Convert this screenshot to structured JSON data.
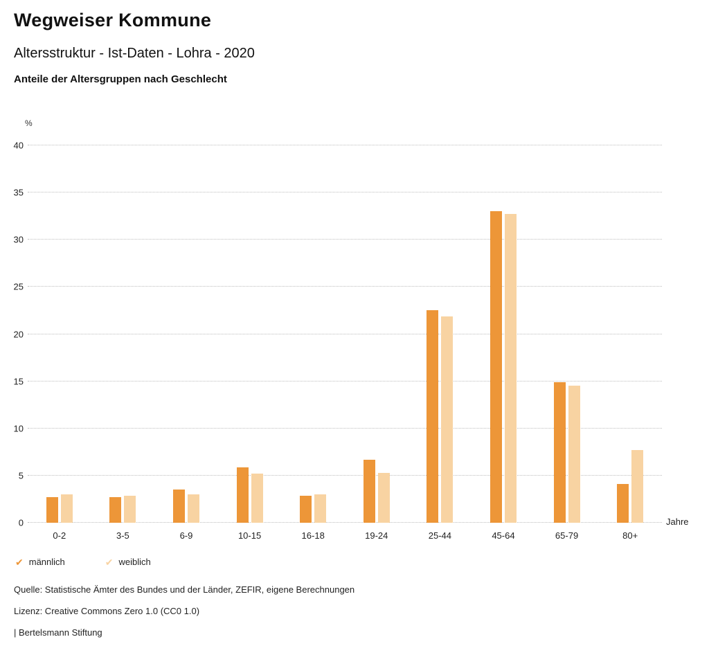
{
  "header": {
    "title": "Wegweiser Kommune",
    "subtitle": "Altersstruktur - Ist-Daten - Lohra - 2020",
    "chart_title": "Anteile der Altersgruppen nach Geschlecht"
  },
  "chart_data": {
    "type": "bar",
    "title": "Anteile der Altersgruppen nach Geschlecht",
    "unit_label": "%",
    "xlabel": "Jahre",
    "ylabel": "%",
    "ylim": [
      0,
      40
    ],
    "ytick_step": 5,
    "grid": true,
    "grid_style": "dotted",
    "legend_position": "bottom-left",
    "categories": [
      "0-2",
      "3-5",
      "6-9",
      "10-15",
      "16-18",
      "19-24",
      "25-44",
      "45-64",
      "65-79",
      "80+"
    ],
    "series": [
      {
        "name": "männlich",
        "color": "#ED9638",
        "values": [
          2.7,
          2.7,
          3.5,
          5.9,
          2.9,
          6.7,
          22.5,
          33.0,
          14.9,
          4.1
        ]
      },
      {
        "name": "weiblich",
        "color": "#F8D3A2",
        "values": [
          3.0,
          2.9,
          3.0,
          5.2,
          3.0,
          5.3,
          21.9,
          32.7,
          14.5,
          7.7
        ]
      }
    ]
  },
  "legend": {
    "check_icon": "✔",
    "items": [
      {
        "label": "männlich",
        "color": "#ED9638"
      },
      {
        "label": "weiblich",
        "color": "#F8D3A2"
      }
    ]
  },
  "footer": {
    "source": "Quelle: Statistische Ämter des Bundes und der Länder, ZEFIR, eigene Berechnungen",
    "license": "Lizenz: Creative Commons Zero 1.0 (CC0 1.0)",
    "attribution": "| Bertelsmann Stiftung"
  }
}
